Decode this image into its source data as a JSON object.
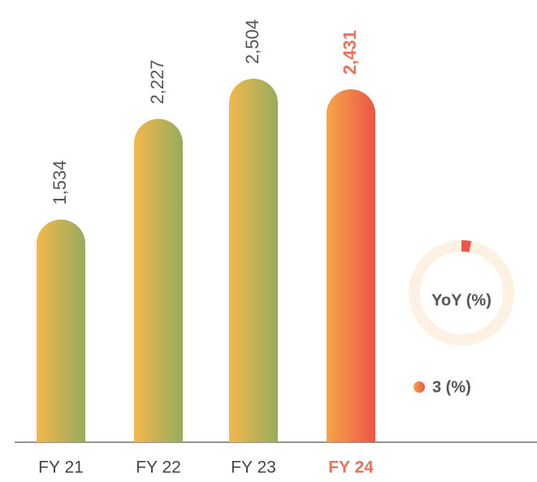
{
  "chart_data": {
    "type": "bar",
    "categories": [
      "FY 21",
      "FY 22",
      "FY 23",
      "FY 24"
    ],
    "values": [
      1534,
      2227,
      2504,
      2431
    ],
    "value_labels": [
      "1,534",
      "2,227",
      "2,504",
      "2,431"
    ],
    "gradient": [
      "#f2b84b",
      "#97ab5f"
    ],
    "highlight_gradient": [
      "#f6a548",
      "#ec5548"
    ],
    "highlight_color": "#e8735a",
    "highlight_index": 3,
    "yoy": {
      "label": "YoY (%)",
      "value": 3,
      "value_label": "3 (%)",
      "ring_color": "#fdf1e4"
    }
  }
}
